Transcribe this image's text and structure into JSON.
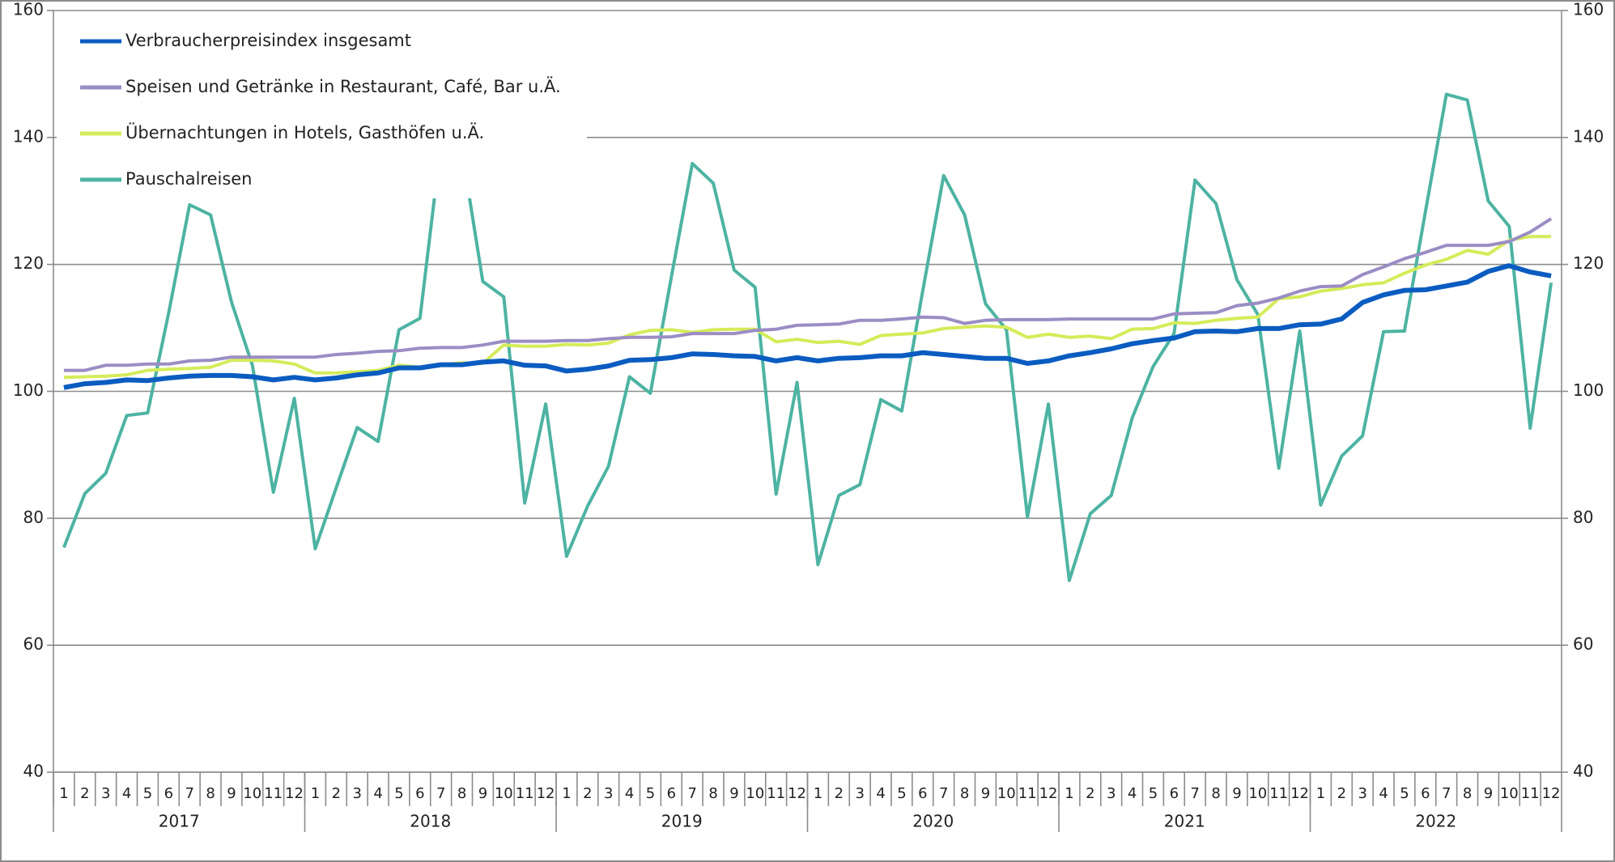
{
  "chart_data": {
    "type": "line",
    "categories": [
      "1",
      "2",
      "3",
      "4",
      "5",
      "6",
      "7",
      "8",
      "9",
      "10",
      "11",
      "12",
      "1",
      "2",
      "3",
      "4",
      "5",
      "6",
      "7",
      "8",
      "9",
      "10",
      "11",
      "12",
      "1",
      "2",
      "3",
      "4",
      "5",
      "6",
      "7",
      "8",
      "9",
      "10",
      "11",
      "12",
      "1",
      "2",
      "3",
      "4",
      "5",
      "6",
      "7",
      "8",
      "9",
      "10",
      "11",
      "12",
      "1",
      "2",
      "3",
      "4",
      "5",
      "6",
      "7",
      "8",
      "9",
      "10",
      "11",
      "12",
      "1",
      "2",
      "3",
      "4",
      "5",
      "6",
      "7",
      "8",
      "9",
      "10",
      "11",
      "12"
    ],
    "years": [
      "2017",
      "2018",
      "2019",
      "2020",
      "2021",
      "2022"
    ],
    "ylim": [
      40,
      160
    ],
    "yticks": [
      40,
      60,
      80,
      100,
      120,
      140,
      160
    ],
    "y2lim": [
      40,
      160
    ],
    "y2ticks": [
      40,
      60,
      80,
      100,
      120,
      140,
      160
    ],
    "grid": true,
    "legend": "upper left",
    "series": [
      {
        "name": "Verbraucherpreisindex insgesamt",
        "color": "#0a5cc0",
        "values": [
          100.6,
          101.2,
          101.4,
          101.8,
          101.7,
          102.1,
          102.4,
          102.5,
          102.5,
          102.3,
          101.8,
          102.2,
          101.8,
          102.1,
          102.6,
          102.9,
          103.7,
          103.7,
          104.2,
          104.2,
          104.6,
          104.8,
          104.1,
          104.0,
          103.2,
          103.5,
          104.0,
          104.9,
          105.0,
          105.3,
          105.9,
          105.8,
          105.6,
          105.5,
          104.8,
          105.3,
          104.8,
          105.2,
          105.3,
          105.6,
          105.6,
          106.1,
          105.8,
          105.5,
          105.2,
          105.2,
          104.4,
          104.8,
          105.6,
          106.1,
          106.7,
          107.5,
          108.0,
          108.4,
          109.4,
          109.5,
          109.4,
          109.9,
          109.9,
          110.5,
          110.6,
          111.4,
          114.0,
          115.2,
          115.9,
          116.0,
          116.6,
          117.2,
          118.9,
          119.8,
          118.8,
          118.2
        ]
      },
      {
        "name": "Speisen und Getränke in Restaurant, Café, Bar u.Ä.",
        "color": "#9b8dc4",
        "values": [
          103.3,
          103.3,
          104.1,
          104.1,
          104.3,
          104.3,
          104.8,
          104.9,
          105.4,
          105.4,
          105.4,
          105.4,
          105.4,
          105.8,
          106.0,
          106.3,
          106.4,
          106.8,
          106.9,
          106.9,
          107.3,
          107.9,
          107.9,
          107.9,
          108.0,
          108.0,
          108.3,
          108.5,
          108.5,
          108.6,
          109.1,
          109.1,
          109.1,
          109.6,
          109.8,
          110.4,
          110.5,
          110.6,
          111.2,
          111.2,
          111.4,
          111.7,
          111.6,
          110.7,
          111.2,
          111.3,
          111.3,
          111.3,
          111.4,
          111.4,
          111.4,
          111.4,
          111.4,
          112.2,
          112.3,
          112.4,
          113.5,
          113.9,
          114.7,
          115.8,
          116.5,
          116.6,
          118.4,
          119.6,
          120.9,
          121.9,
          123.0,
          123.0,
          123.0,
          123.6,
          125.1,
          127.2
        ]
      },
      {
        "name": "Übernachtungen in Hotels, Gasthöfen u.Ä.",
        "color": "#d4ec5a",
        "values": [
          102.2,
          102.3,
          102.4,
          102.6,
          103.3,
          103.5,
          103.6,
          103.8,
          104.9,
          104.9,
          104.8,
          104.3,
          102.9,
          102.9,
          103.1,
          103.3,
          104.1,
          103.8,
          104.2,
          104.5,
          104.4,
          107.3,
          107.1,
          107.1,
          107.4,
          107.3,
          107.6,
          108.9,
          109.6,
          109.7,
          109.3,
          109.7,
          109.8,
          109.8,
          107.8,
          108.2,
          107.7,
          107.9,
          107.4,
          108.8,
          109.0,
          109.2,
          109.9,
          110.1,
          110.3,
          110.1,
          108.5,
          109.0,
          108.5,
          108.7,
          108.3,
          109.8,
          109.9,
          110.8,
          110.7,
          111.2,
          111.5,
          111.7,
          114.6,
          114.9,
          115.8,
          116.2,
          116.8,
          117.1,
          118.6,
          119.9,
          120.8,
          122.2,
          121.6,
          123.8,
          124.4,
          124.4
        ]
      },
      {
        "name": "Pauschalreisen",
        "color": "#4db3a2",
        "values": [
          75.4,
          83.9,
          87.1,
          96.2,
          96.6,
          112.3,
          129.4,
          127.8,
          114.1,
          104.1,
          84.1,
          98.9,
          75.2,
          84.8,
          94.3,
          92.1,
          109.7,
          111.5,
          139,
          138,
          117.3,
          114.9,
          82.4,
          98.0,
          74.0,
          81.9,
          88.2,
          102.3,
          99.7,
          118.0,
          135.9,
          132.8,
          119.1,
          116.4,
          83.8,
          101.4,
          72.7,
          83.6,
          85.3,
          98.7,
          96.9,
          115.8,
          134.0,
          127.8,
          113.8,
          109.7,
          80.2,
          98.0,
          70.2,
          80.7,
          83.6,
          95.8,
          103.9,
          109.1,
          133.3,
          129.6,
          117.6,
          112.1,
          87.9,
          109.5,
          82.1,
          89.8,
          93.0,
          109.4,
          109.5,
          128.3,
          146.8,
          145.9,
          130.0,
          126.0,
          94.2,
          117.1
        ]
      }
    ]
  }
}
